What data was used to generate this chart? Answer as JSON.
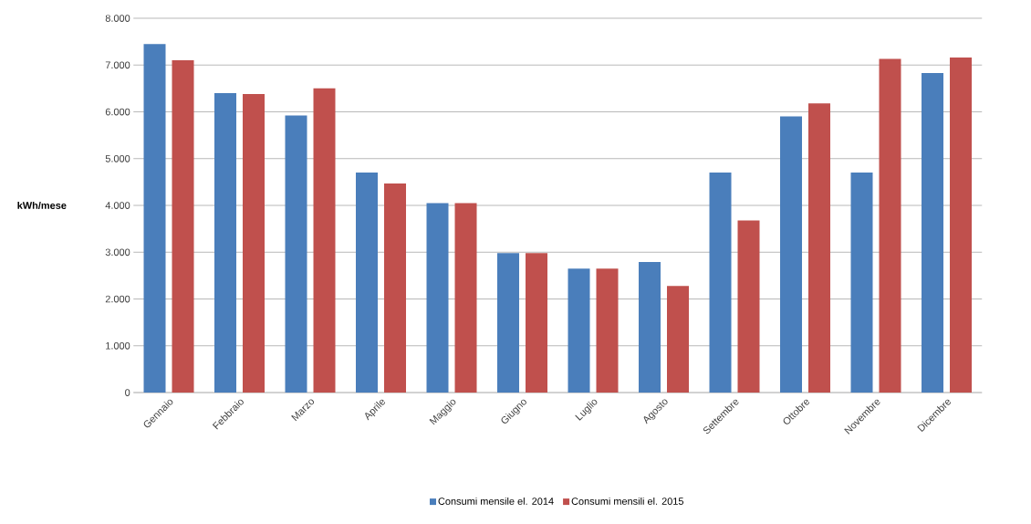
{
  "chart_data": {
    "type": "bar",
    "ylabel": "kWh/mese",
    "categories": [
      "Gennaio",
      "Febbraio",
      "Marzo",
      "Aprile",
      "Maggio",
      "Giugno",
      "Luglio",
      "Agosto",
      "Settembre",
      "Ottobre",
      "Novembre",
      "Dicembre"
    ],
    "series": [
      {
        "name": "Consumi mensile el. 2014",
        "color": "#4a7ebb",
        "values": [
          7450,
          6400,
          5920,
          4700,
          4050,
          2980,
          2650,
          2790,
          4700,
          5900,
          4700,
          6830
        ]
      },
      {
        "name": "Consumi mensili el. 2015",
        "color": "#c0504d",
        "values": [
          7100,
          6380,
          6500,
          4470,
          4050,
          2980,
          2650,
          2280,
          3680,
          6180,
          7130,
          7160
        ]
      }
    ],
    "ylim": [
      0,
      8000
    ],
    "yticks": [
      0,
      {
        "value": 1000,
        "label": "1.000"
      },
      {
        "value": 2000,
        "label": "2.000"
      },
      {
        "value": 3000,
        "label": "3.000"
      },
      {
        "value": 4000,
        "label": "4.000"
      },
      {
        "value": 5000,
        "label": "5.000"
      },
      {
        "value": 6000,
        "label": "6.000"
      },
      {
        "value": 7000,
        "label": "7.000"
      },
      {
        "value": 8000,
        "label": "8.000"
      }
    ],
    "grid": "y",
    "legend": "bottom"
  }
}
